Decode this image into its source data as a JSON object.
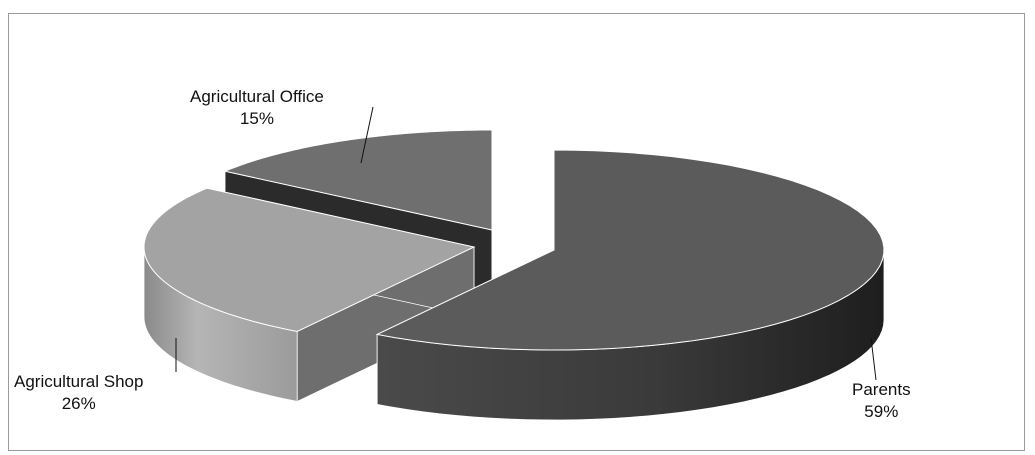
{
  "chart_data": {
    "type": "pie",
    "variant": "3d-exploded",
    "categories": [
      "Parents",
      "Agricultural Shop",
      "Agricultural Office"
    ],
    "values": [
      59,
      26,
      15
    ],
    "value_labels": [
      "59%",
      "26%",
      "15%"
    ],
    "title": "",
    "legend": "none",
    "colors": {
      "Parents": "#5b5b5b",
      "Agricultural Shop": "#a3a3a3",
      "Agricultural Office": "#6f6f6f"
    }
  }
}
